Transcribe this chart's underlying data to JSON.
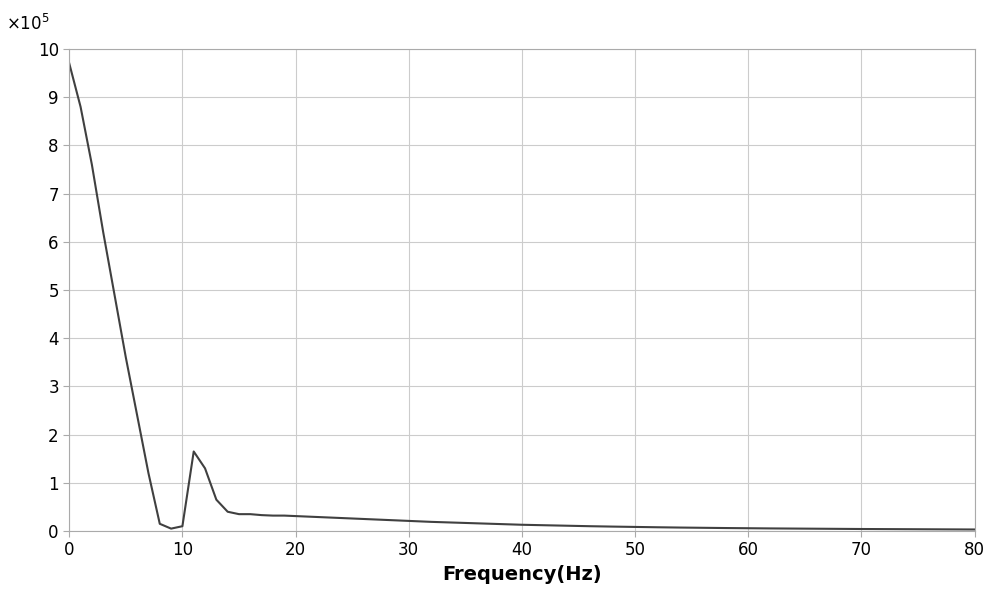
{
  "x": [
    0,
    1,
    2,
    3,
    4,
    5,
    6,
    7,
    8,
    9,
    10,
    11,
    12,
    13,
    14,
    15,
    16,
    17,
    18,
    19,
    20,
    22,
    24,
    26,
    28,
    30,
    32,
    34,
    36,
    38,
    40,
    42,
    44,
    46,
    48,
    50,
    52,
    54,
    56,
    58,
    60,
    62,
    64,
    66,
    68,
    70,
    72,
    74,
    76,
    78,
    80
  ],
  "y": [
    970000,
    880000,
    760000,
    620000,
    490000,
    360000,
    240000,
    120000,
    15000,
    5000,
    10000,
    165000,
    130000,
    65000,
    40000,
    35000,
    35000,
    33000,
    32000,
    32000,
    31000,
    29000,
    27000,
    25000,
    23000,
    21000,
    19000,
    17500,
    16000,
    14500,
    13000,
    12000,
    11000,
    10000,
    9200,
    8500,
    7800,
    7200,
    6700,
    6200,
    5800,
    5400,
    5100,
    4800,
    4500,
    4200,
    4000,
    3800,
    3600,
    3400,
    3200
  ],
  "line_color": "#404040",
  "line_width": 1.5,
  "xlabel": "Frequency(Hz)",
  "xlabel_fontsize": 14,
  "xlabel_fontweight": "bold",
  "xlim": [
    0,
    80
  ],
  "ylim": [
    0,
    1000000
  ],
  "xticks": [
    0,
    10,
    20,
    30,
    40,
    50,
    60,
    70,
    80
  ],
  "yticks": [
    0,
    100000,
    200000,
    300000,
    400000,
    500000,
    600000,
    700000,
    800000,
    900000,
    1000000
  ],
  "ytick_labels": [
    "0",
    "1",
    "2",
    "3",
    "4",
    "5",
    "6",
    "7",
    "8",
    "9",
    "10"
  ],
  "grid_color": "#cccccc",
  "background_color": "#ffffff"
}
